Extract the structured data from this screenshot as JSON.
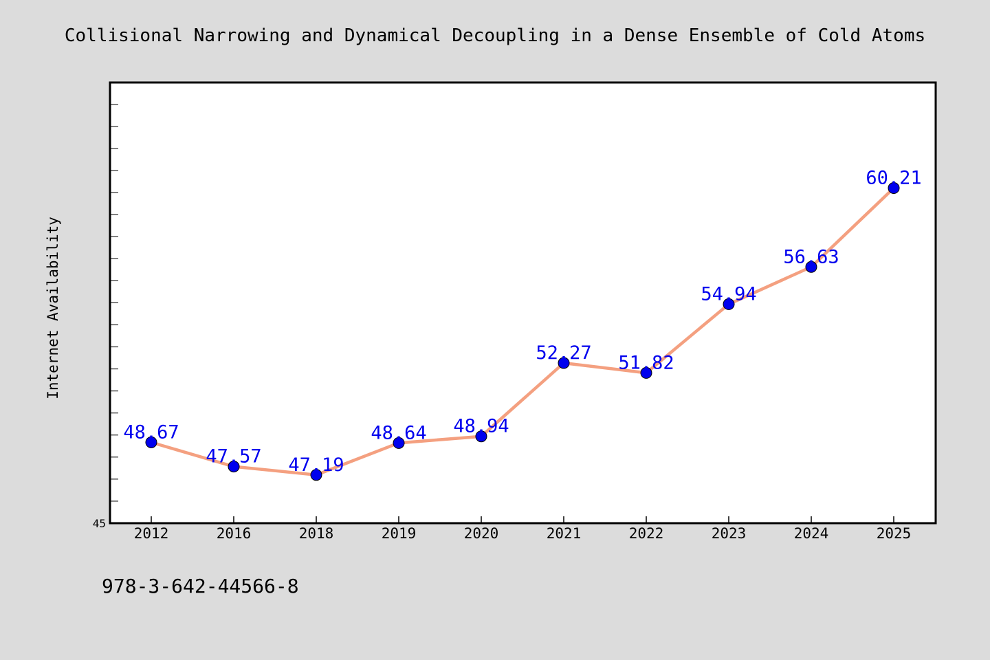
{
  "figure": {
    "background": "#dcdcdc",
    "plot_background": "#ffffff",
    "footer_text": "978-3-642-44566-8"
  },
  "chart_data": {
    "type": "line",
    "title": "Collisional Narrowing and Dynamical Decoupling in a Dense Ensemble of Cold Atoms",
    "xlabel": "",
    "ylabel": "Internet Availability",
    "categories": [
      "2012",
      "2016",
      "2018",
      "2019",
      "2020",
      "2021",
      "2022",
      "2023",
      "2024",
      "2025"
    ],
    "series": [
      {
        "values": [
          48.67,
          47.57,
          47.19,
          48.64,
          48.94,
          52.27,
          51.82,
          54.94,
          56.63,
          60.21
        ],
        "labels": [
          "48.67",
          "47.57",
          "47.19",
          "48.64",
          "48.94",
          "52.27",
          "51.82",
          "54.94",
          "56.63",
          "60.21"
        ],
        "line_color": "#f4a080",
        "marker_color": "#0000ee",
        "label_color": "#0000ee"
      }
    ],
    "ylim": [
      45,
      65
    ],
    "yticks_labeled": [
      "45"
    ],
    "grid": false,
    "legend": "none"
  }
}
